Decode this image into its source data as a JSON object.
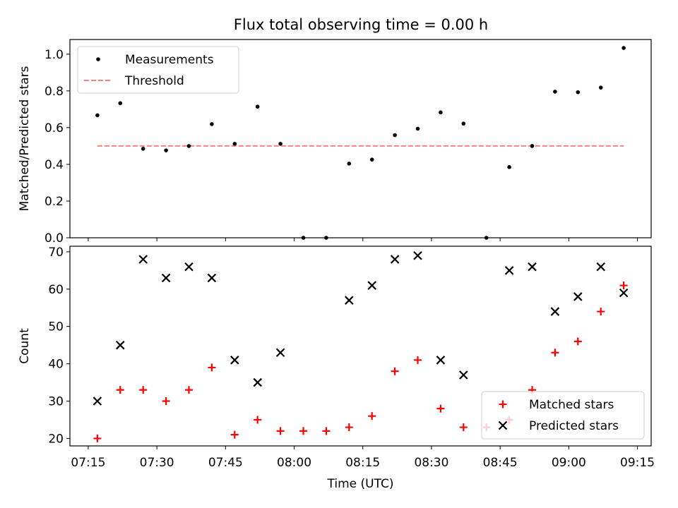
{
  "chart_data": [
    {
      "type": "scatter",
      "title": "Flux total observing time = 0.00 h",
      "ylabel": "Matched/Predicted stars",
      "ylim": [
        0,
        1.08
      ],
      "y_ticks": [
        "0.0",
        "0.2",
        "0.4",
        "0.6",
        "0.8",
        "1.0"
      ],
      "legend_position": "top-left",
      "series": [
        {
          "name": "Measurements",
          "marker": "dot",
          "color": "#000000",
          "x": [
            "07:17",
            "07:22",
            "07:27",
            "07:32",
            "07:37",
            "07:42",
            "07:47",
            "07:52",
            "07:57",
            "08:02",
            "08:07",
            "08:12",
            "08:17",
            "08:22",
            "08:27",
            "08:32",
            "08:37",
            "08:42",
            "08:47",
            "08:52",
            "08:57",
            "09:02",
            "09:07",
            "09:12"
          ],
          "values": [
            0.667,
            0.733,
            0.485,
            0.476,
            0.5,
            0.619,
            0.512,
            0.714,
            0.512,
            0.0,
            0.0,
            0.404,
            0.426,
            0.559,
            0.594,
            0.683,
            0.622,
            0.0,
            0.385,
            0.5,
            0.796,
            0.793,
            0.818,
            1.034
          ]
        },
        {
          "name": "Threshold",
          "style": "dashed",
          "color": "#ff7f7f",
          "x": [
            "07:17",
            "09:12"
          ],
          "values": [
            0.5,
            0.5
          ]
        }
      ]
    },
    {
      "type": "scatter",
      "xlabel": "Time (UTC)",
      "ylabel": "Count",
      "ylim": [
        18,
        71.5
      ],
      "y_ticks": [
        "20",
        "30",
        "40",
        "50",
        "60",
        "70"
      ],
      "x_ticks": [
        "07:15",
        "07:30",
        "07:45",
        "08:00",
        "08:15",
        "08:30",
        "08:45",
        "09:00",
        "09:15"
      ],
      "xlim": [
        "07:11",
        "09:18"
      ],
      "legend_position": "bottom-right",
      "series": [
        {
          "name": "Matched stars",
          "marker": "plus",
          "color": "#ff0000",
          "x": [
            "07:17",
            "07:22",
            "07:27",
            "07:32",
            "07:37",
            "07:42",
            "07:47",
            "07:52",
            "07:57",
            "08:02",
            "08:07",
            "08:12",
            "08:17",
            "08:22",
            "08:27",
            "08:32",
            "08:37",
            "08:42",
            "08:47",
            "08:52",
            "08:57",
            "09:02",
            "09:07",
            "09:12"
          ],
          "values": [
            20,
            33,
            33,
            30,
            33,
            39,
            21,
            25,
            22,
            22,
            22,
            23,
            26,
            38,
            41,
            28,
            23,
            23,
            25,
            33,
            43,
            46,
            54,
            61
          ]
        },
        {
          "name": "Predicted stars",
          "marker": "x",
          "color": "#000000",
          "x": [
            "07:17",
            "07:22",
            "07:27",
            "07:32",
            "07:37",
            "07:42",
            "07:47",
            "07:52",
            "07:57",
            "08:12",
            "08:17",
            "08:22",
            "08:27",
            "08:32",
            "08:37",
            "08:47",
            "08:52",
            "08:57",
            "09:02",
            "09:07",
            "09:12"
          ],
          "values": [
            30,
            45,
            68,
            63,
            66,
            63,
            41,
            35,
            43,
            57,
            61,
            68,
            69,
            41,
            37,
            65,
            66,
            54,
            58,
            66,
            59
          ]
        }
      ]
    }
  ]
}
